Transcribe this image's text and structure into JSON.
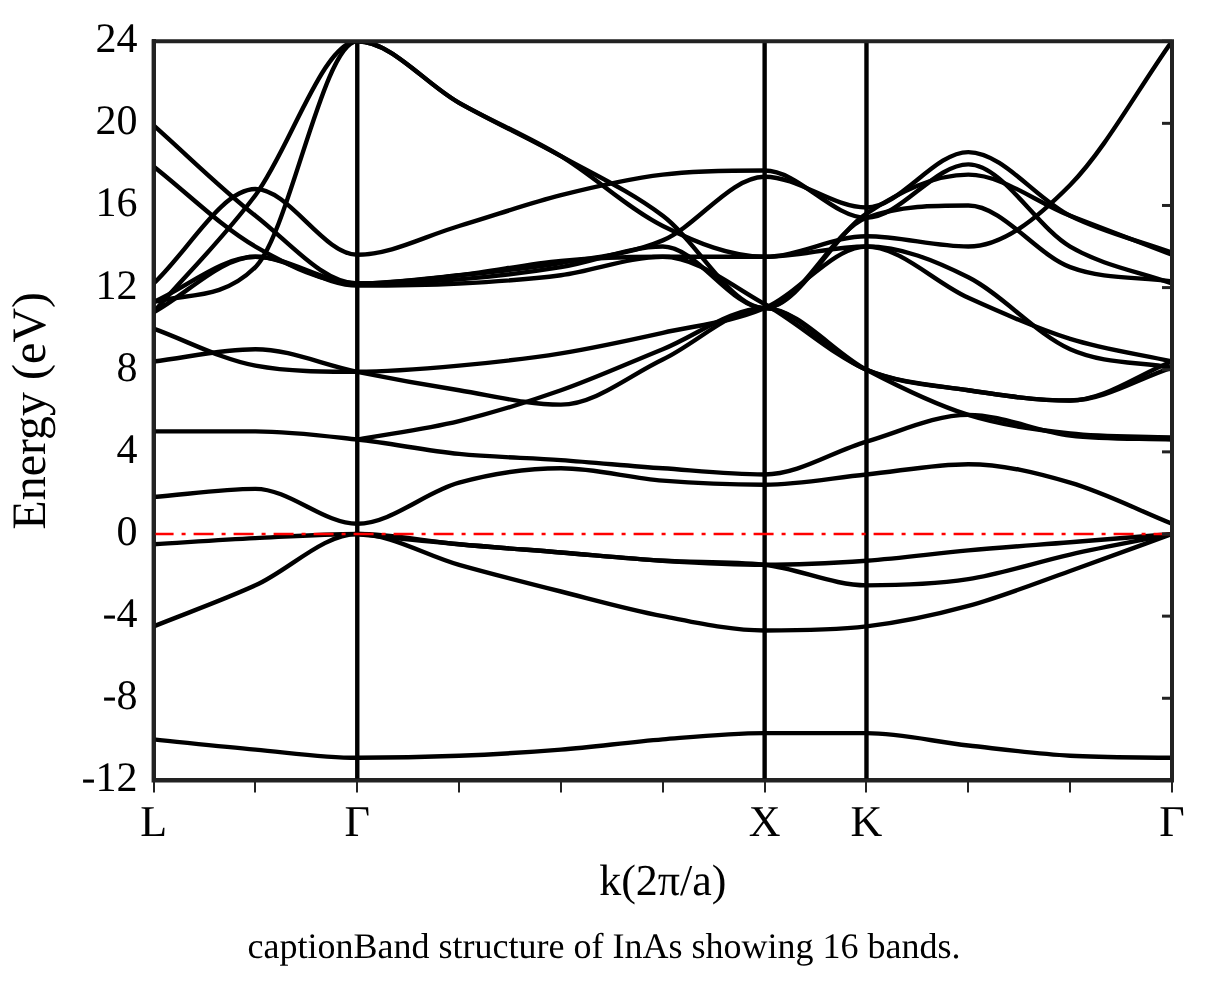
{
  "chart_data": {
    "type": "line",
    "xlabel": "k(2π/a)",
    "ylabel": "Energy (eV)",
    "annotations": [
      "captionBand structure of InAs showing 16 bands."
    ],
    "categories": [
      "L",
      null,
      "Γ",
      null,
      null,
      null,
      "X",
      "K",
      null,
      null,
      "Γ"
    ],
    "ylim": [
      -12,
      24
    ],
    "yticks": [
      -12,
      -8,
      -4,
      0,
      4,
      8,
      12,
      16,
      20,
      24
    ],
    "grid": false,
    "legend": false,
    "line_style": "solid",
    "ref_lines": [
      {
        "axis": "x",
        "value": "Γ",
        "color": "#000000"
      },
      {
        "axis": "x",
        "value": "X",
        "color": "#000000"
      },
      {
        "axis": "x",
        "value": "K",
        "color": "#000000"
      },
      {
        "axis": "y",
        "value": 0,
        "color": "#ff0000",
        "line_style": "dashed"
      }
    ],
    "series": [
      {
        "color": "#000000",
        "values": [
          -10.0,
          -10.5,
          -10.9,
          -10.8,
          -10.5,
          -10.0,
          -9.7,
          -9.7,
          -10.3,
          -10.8,
          -10.9
        ]
      },
      {
        "color": "#000000",
        "values": [
          -4.5,
          -2.5,
          0,
          -1.5,
          -2.8,
          -4.0,
          -4.7,
          -4.5,
          -3.5,
          -1.8,
          0
        ]
      },
      {
        "color": "#000000",
        "values": [
          -0.5,
          -0.2,
          0,
          -0.5,
          -0.9,
          -1.3,
          -1.5,
          -2.5,
          -2.2,
          -1.0,
          0
        ]
      },
      {
        "color": "#000000",
        "values": [
          null,
          null,
          0,
          -0.5,
          -0.9,
          -1.3,
          -1.5,
          -1.3,
          -0.8,
          -0.4,
          0
        ]
      },
      {
        "color": "#000000",
        "values": [
          1.8,
          2.2,
          0.5,
          2.5,
          3.2,
          2.6,
          2.4,
          2.9,
          3.4,
          2.5,
          0.5
        ]
      },
      {
        "color": "#000000",
        "values": [
          5.0,
          5.0,
          4.6,
          3.9,
          3.6,
          3.2,
          2.9,
          4.5,
          5.8,
          4.8,
          4.6
        ]
      },
      {
        "color": "#000000",
        "values": [
          null,
          null,
          4.6,
          5.5,
          7.0,
          9.0,
          11.0,
          8.0,
          5.8,
          4.9,
          4.7
        ]
      },
      {
        "color": "#000000",
        "values": [
          8.4,
          9.0,
          7.9,
          7.0,
          6.3,
          8.5,
          11.0,
          8.0,
          7.0,
          6.5,
          8.1
        ]
      },
      {
        "color": "#000000",
        "values": [
          10.0,
          8.2,
          7.9,
          8.2,
          8.8,
          9.8,
          11.0,
          14.0,
          12.5,
          9.0,
          8.1
        ]
      },
      {
        "color": "#000000",
        "values": [
          10.8,
          13.5,
          12.1,
          12.2,
          12.6,
          13.5,
          11.2,
          8.0,
          7.0,
          6.5,
          8.4
        ]
      },
      {
        "color": "#000000",
        "values": [
          11.3,
          13.5,
          12.2,
          12.6,
          13.2,
          14.3,
          17.4,
          15.9,
          18.6,
          15.5,
          13.7
        ]
      },
      {
        "color": "#000000",
        "values": [
          12.2,
          16.8,
          13.6,
          15.0,
          16.5,
          17.5,
          17.7,
          15.4,
          18.0,
          14.0,
          12.2
        ]
      },
      {
        "color": "#000000",
        "values": [
          17.9,
          14.0,
          12.2,
          12.4,
          13.0,
          14.0,
          11.0,
          15.4,
          16.0,
          13.0,
          12.3
        ]
      },
      {
        "color": "#000000",
        "values": [
          19.9,
          15.5,
          12.2,
          12.6,
          13.3,
          13.5,
          13.5,
          14.0,
          11.5,
          9.5,
          8.4
        ]
      },
      {
        "color": "#000000",
        "values": [
          10.8,
          16.5,
          24,
          21,
          18.4,
          15.5,
          11.0,
          15.6,
          17.5,
          15.5,
          13.6
        ]
      },
      {
        "color": "#000000",
        "values": [
          11.3,
          13.0,
          24,
          21,
          18.4,
          15.0,
          13.5,
          14.5,
          14.0,
          17.0,
          24
        ]
      }
    ]
  }
}
